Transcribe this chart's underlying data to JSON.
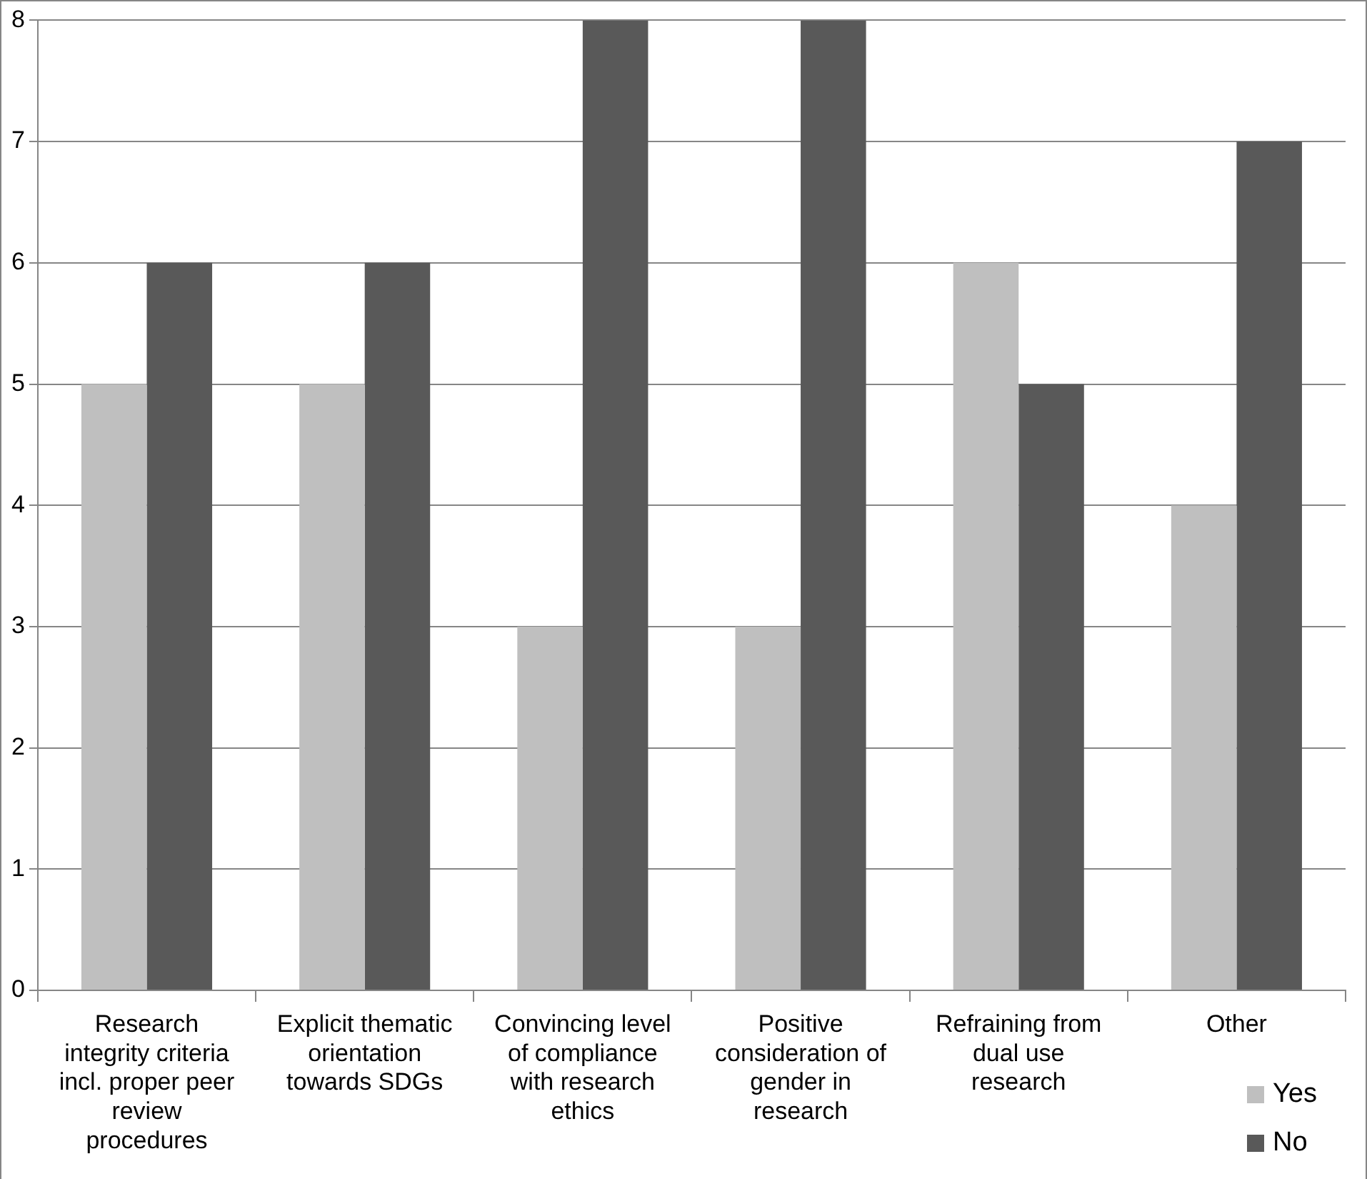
{
  "chart_data": {
    "type": "bar",
    "categories": [
      "Research integrity criteria incl. proper peer review procedures",
      "Explicit thematic orientation towards SDGs",
      "Convincing level of compliance with research ethics",
      "Positive consideration of gender in research",
      "Refraining from dual use research",
      "Other"
    ],
    "series": [
      {
        "name": "Yes",
        "color": "#bfbfbf",
        "values": [
          5,
          5,
          3,
          3,
          6,
          4
        ]
      },
      {
        "name": "No",
        "color": "#595959",
        "values": [
          6,
          6,
          8,
          8,
          5,
          7
        ]
      }
    ],
    "ylim": [
      0,
      8
    ],
    "yticks": [
      0,
      1,
      2,
      3,
      4,
      5,
      6,
      7,
      8
    ],
    "grid": "y",
    "legend": "bottom right"
  }
}
